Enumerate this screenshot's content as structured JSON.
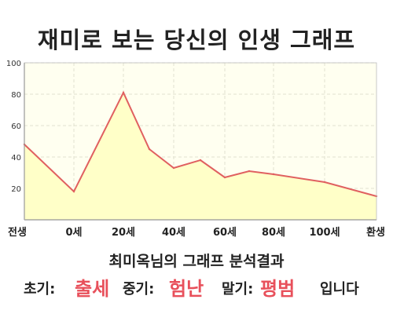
{
  "title": "재미로 보는 당신의 인생 그래프",
  "chart_data": {
    "type": "area",
    "title": "재미로 보는 당신의 인생 그래프",
    "xlabel": "",
    "ylabel": "",
    "ylim": [
      0,
      100
    ],
    "y_ticks": [
      "20",
      "40",
      "60",
      "80",
      "100"
    ],
    "x_tick_labels": [
      "전생",
      "0세",
      "20세",
      "40세",
      "60세",
      "80세",
      "100세",
      "환생"
    ],
    "x": [
      "전생",
      "0세",
      "20세",
      "27세",
      "40세",
      "47세",
      "60세",
      "72세",
      "80세",
      "100세",
      "환생"
    ],
    "values": [
      48,
      18,
      81,
      45,
      33,
      38,
      27,
      31,
      29,
      24,
      15
    ],
    "line_color": "#e06060",
    "fill_color": "#ffffc8",
    "plot_background": "#fffff0",
    "grid": true
  },
  "analysis": {
    "title": "최미옥님의 그래프 분석결과",
    "early_label": "초기:",
    "early_value": "출세",
    "mid_label": "중기:",
    "mid_value": "험난",
    "late_label": "말기:",
    "late_value": "평범",
    "suffix": "입니다",
    "highlight_color": "#e8505b"
  }
}
